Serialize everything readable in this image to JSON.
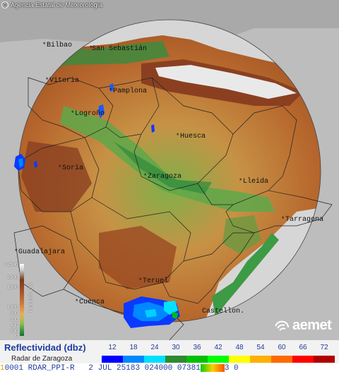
{
  "copyright": "Agencia Estatal de Meteorología",
  "brand": "aemet",
  "cities": [
    {
      "name": "Bilbao"
    },
    {
      "name": "San Sebastián"
    },
    {
      "name": "Vitoria"
    },
    {
      "name": "Pamplona"
    },
    {
      "name": "Logroño"
    },
    {
      "name": "Huesca"
    },
    {
      "name": "Soria"
    },
    {
      "name": "Zaragoza"
    },
    {
      "name": "Lleida"
    },
    {
      "name": "Tarragona"
    },
    {
      "name": "Guadalajara"
    },
    {
      "name": "Teruel"
    },
    {
      "name": "Cuenca"
    },
    {
      "name": "Castellon."
    }
  ],
  "altitude_legend": {
    "title": "Orografía (m)",
    "labels": [
      ">2500",
      "2000",
      "1500",
      "1000",
      "800",
      "600",
      "400",
      "200",
      "0"
    ]
  },
  "reflectivity": {
    "title": "Reflectividad (dbz)",
    "subtitle": "Radar de Zaragoza",
    "scale": [
      {
        "value": "12",
        "color": "#0000ff"
      },
      {
        "value": "18",
        "color": "#0088ff"
      },
      {
        "value": "24",
        "color": "#00e0ff"
      },
      {
        "value": "30",
        "color": "#2e8b2e"
      },
      {
        "value": "36",
        "color": "#00c000"
      },
      {
        "value": "42",
        "color": "#00ff00"
      },
      {
        "value": "48",
        "color": "#ffff00"
      },
      {
        "value": "54",
        "color": "#ffb000"
      },
      {
        "value": "60",
        "color": "#ff6a00"
      },
      {
        "value": "66",
        "color": "#ff0000"
      },
      {
        "value": "72",
        "color": "#b00000"
      }
    ]
  },
  "status_bar": {
    "first": "1",
    "text": "0001 RDAR_PPI-R   2 JUL 25183 024000 07381",
    "tail": "3 0"
  }
}
